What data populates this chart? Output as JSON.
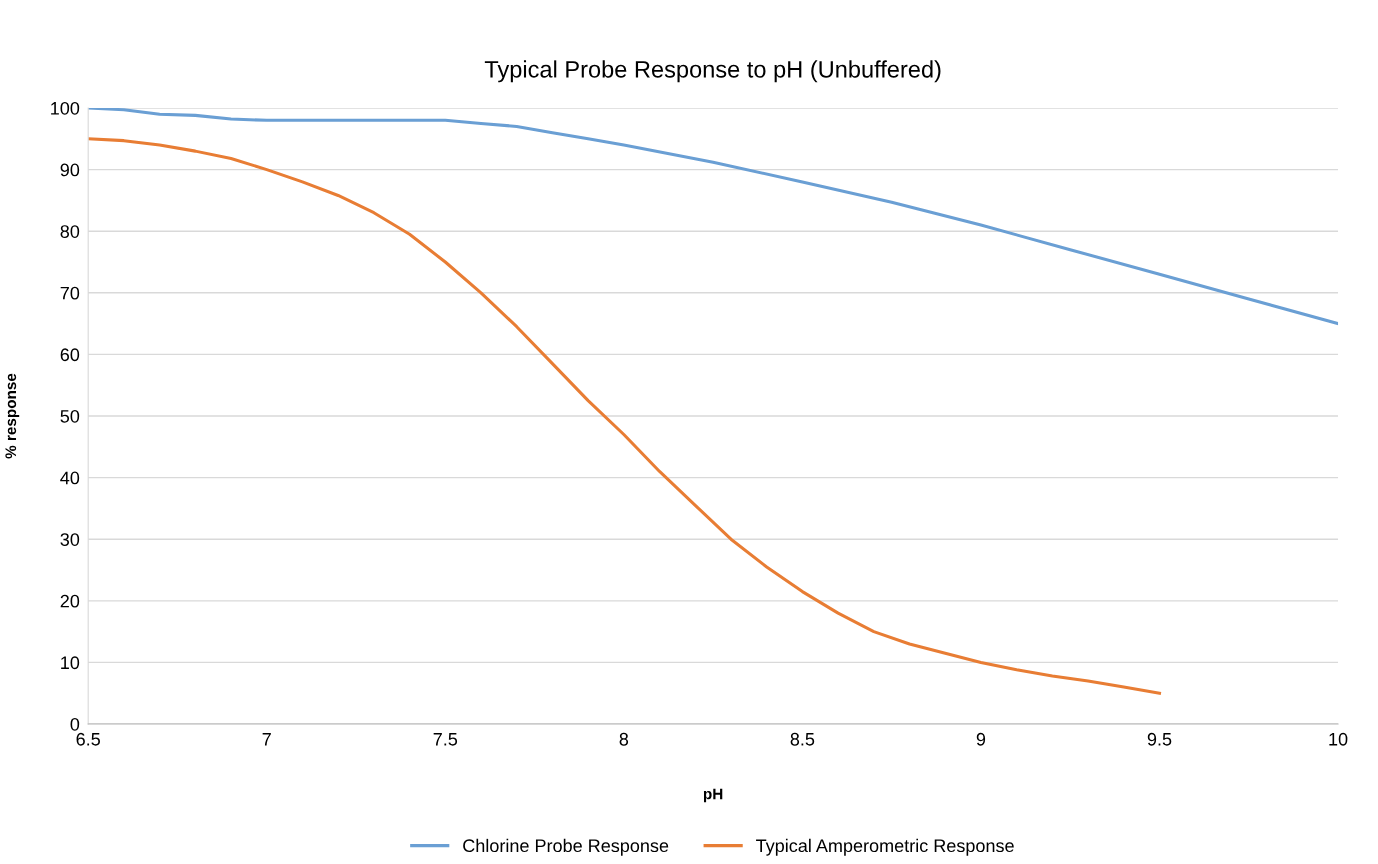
{
  "chart_data": {
    "type": "line",
    "title": "Typical Probe Response to pH (Unbuffered)",
    "xlabel": "pH",
    "ylabel": "% response",
    "xlim": [
      6.5,
      10
    ],
    "xticks": [
      6.5,
      7,
      7.5,
      8,
      8.5,
      9,
      9.5,
      10
    ],
    "ylim": [
      0,
      100
    ],
    "yticks": [
      0,
      10,
      20,
      30,
      40,
      50,
      60,
      70,
      80,
      90,
      100
    ],
    "grid": "y",
    "legend": "bottom",
    "marker": "none",
    "line_style": "solid",
    "series": [
      {
        "name": "Chlorine Probe Response",
        "color": "#6a9fd4",
        "x": [
          6.5,
          6.6,
          6.7,
          6.8,
          6.9,
          7,
          7.5,
          7.6,
          7.7,
          7.8,
          7.9,
          8,
          8.25,
          8.5,
          8.75,
          9,
          9.25,
          9.5,
          9.75,
          10
        ],
        "values": [
          100,
          99.7,
          99,
          98.8,
          98.2,
          98,
          98,
          97.5,
          97,
          96,
          95,
          94,
          91.2,
          88,
          84.7,
          81,
          77,
          73,
          69,
          65
        ]
      },
      {
        "name": "Typical Amperometric Response",
        "color": "#e87d34",
        "x": [
          6.5,
          6.6,
          6.7,
          6.8,
          6.9,
          7.0,
          7.1,
          7.2,
          7.3,
          7.4,
          7.5,
          7.6,
          7.7,
          7.8,
          7.9,
          8.0,
          8.1,
          8.2,
          8.3,
          8.4,
          8.5,
          8.6,
          8.7,
          8.8,
          8.9,
          9.0,
          9.1,
          9.2,
          9.3,
          9.4,
          9.5
        ],
        "values": [
          95,
          94.7,
          94,
          93,
          91.8,
          90,
          88,
          85.8,
          83,
          79.5,
          75,
          70,
          64.5,
          58.5,
          52.5,
          47,
          41,
          35.5,
          30,
          25.5,
          21.5,
          18,
          15,
          13,
          11.5,
          10,
          8.8,
          7.8,
          7,
          6,
          5
        ]
      }
    ]
  }
}
